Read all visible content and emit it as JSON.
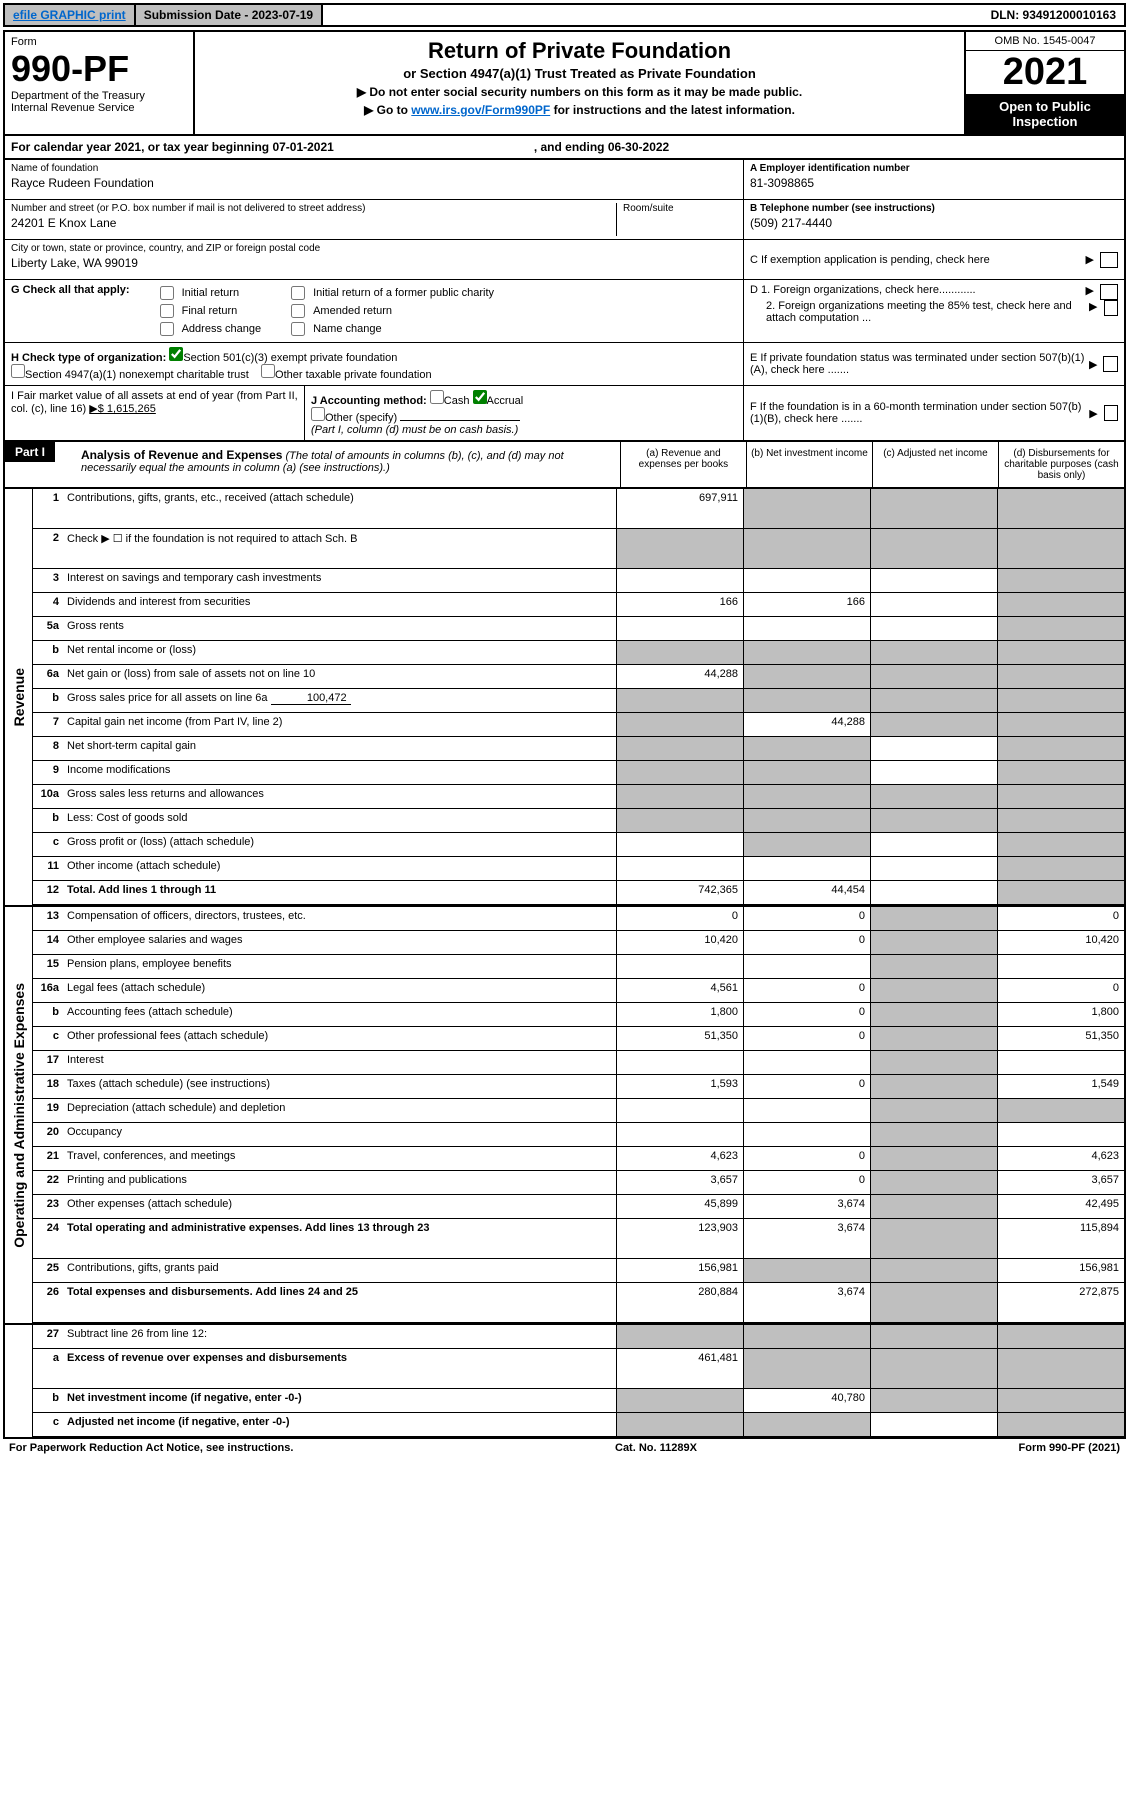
{
  "topbar": {
    "efile": "efile GRAPHIC print",
    "submission": "Submission Date - 2023-07-19",
    "dln": "DLN: 93491200010163"
  },
  "header": {
    "form_label": "Form",
    "form_num": "990-PF",
    "dept": "Department of the Treasury",
    "irs": "Internal Revenue Service",
    "title": "Return of Private Foundation",
    "subtitle": "or Section 4947(a)(1) Trust Treated as Private Foundation",
    "inst1": "▶ Do not enter social security numbers on this form as it may be made public.",
    "inst2_pre": "▶ Go to ",
    "inst2_link": "www.irs.gov/Form990PF",
    "inst2_post": " for instructions and the latest information.",
    "omb": "OMB No. 1545-0047",
    "year": "2021",
    "open": "Open to Public Inspection"
  },
  "calyear": {
    "text": "For calendar year 2021, or tax year beginning 07-01-2021",
    "ending": ", and ending 06-30-2022"
  },
  "foundation": {
    "name_label": "Name of foundation",
    "name": "Rayce Rudeen Foundation",
    "addr_label": "Number and street (or P.O. box number if mail is not delivered to street address)",
    "addr": "24201 E Knox Lane",
    "room_label": "Room/suite",
    "city_label": "City or town, state or province, country, and ZIP or foreign postal code",
    "city": "Liberty Lake, WA  99019",
    "ein_label": "A Employer identification number",
    "ein": "81-3098865",
    "phone_label": "B Telephone number (see instructions)",
    "phone": "(509) 217-4440",
    "c_label": "C If exemption application is pending, check here",
    "d1": "D 1. Foreign organizations, check here............",
    "d2": "2. Foreign organizations meeting the 85% test, check here and attach computation ...",
    "e_label": "E  If private foundation status was terminated under section 507(b)(1)(A), check here .......",
    "f_label": "F  If the foundation is in a 60-month termination under section 507(b)(1)(B), check here ......."
  },
  "g": {
    "label": "G Check all that apply:",
    "opts": [
      "Initial return",
      "Final return",
      "Address change",
      "Initial return of a former public charity",
      "Amended return",
      "Name change"
    ]
  },
  "h": {
    "label": "H Check type of organization:",
    "opt1": "Section 501(c)(3) exempt private foundation",
    "opt2": "Section 4947(a)(1) nonexempt charitable trust",
    "opt3": "Other taxable private foundation"
  },
  "i": {
    "label": "I Fair market value of all assets at end of year (from Part II, col. (c), line 16)",
    "value": "▶$  1,615,265"
  },
  "j": {
    "label": "J Accounting method:",
    "cash": "Cash",
    "accrual": "Accrual",
    "other": "Other (specify)",
    "note": "(Part I, column (d) must be on cash basis.)"
  },
  "part1": {
    "label": "Part I",
    "title": "Analysis of Revenue and Expenses",
    "note": "(The total of amounts in columns (b), (c), and (d) may not necessarily equal the amounts in column (a) (see instructions).)",
    "col_a": "(a)   Revenue and expenses per books",
    "col_b": "(b)   Net investment income",
    "col_c": "(c)   Adjusted net income",
    "col_d": "(d)   Disbursements for charitable purposes (cash basis only)"
  },
  "revenue_label": "Revenue",
  "expenses_label": "Operating and Administrative Expenses",
  "rows": {
    "r1": {
      "n": "1",
      "d": "Contributions, gifts, grants, etc., received (attach schedule)",
      "a": "697,911"
    },
    "r2": {
      "n": "2",
      "d": "Check ▶ ☐ if the foundation is not required to attach Sch. B"
    },
    "r3": {
      "n": "3",
      "d": "Interest on savings and temporary cash investments"
    },
    "r4": {
      "n": "4",
      "d": "Dividends and interest from securities",
      "a": "166",
      "b": "166"
    },
    "r5a": {
      "n": "5a",
      "d": "Gross rents"
    },
    "r5b": {
      "n": "b",
      "d": "Net rental income or (loss)"
    },
    "r6a": {
      "n": "6a",
      "d": "Net gain or (loss) from sale of assets not on line 10",
      "a": "44,288"
    },
    "r6b": {
      "n": "b",
      "d": "Gross sales price for all assets on line 6a",
      "v": "100,472"
    },
    "r7": {
      "n": "7",
      "d": "Capital gain net income (from Part IV, line 2)",
      "b": "44,288"
    },
    "r8": {
      "n": "8",
      "d": "Net short-term capital gain"
    },
    "r9": {
      "n": "9",
      "d": "Income modifications"
    },
    "r10a": {
      "n": "10a",
      "d": "Gross sales less returns and allowances"
    },
    "r10b": {
      "n": "b",
      "d": "Less: Cost of goods sold"
    },
    "r10c": {
      "n": "c",
      "d": "Gross profit or (loss) (attach schedule)"
    },
    "r11": {
      "n": "11",
      "d": "Other income (attach schedule)"
    },
    "r12": {
      "n": "12",
      "d": "Total. Add lines 1 through 11",
      "a": "742,365",
      "b": "44,454"
    },
    "r13": {
      "n": "13",
      "d": "Compensation of officers, directors, trustees, etc.",
      "a": "0",
      "b": "0",
      "dd": "0"
    },
    "r14": {
      "n": "14",
      "d": "Other employee salaries and wages",
      "a": "10,420",
      "b": "0",
      "dd": "10,420"
    },
    "r15": {
      "n": "15",
      "d": "Pension plans, employee benefits"
    },
    "r16a": {
      "n": "16a",
      "d": "Legal fees (attach schedule)",
      "a": "4,561",
      "b": "0",
      "dd": "0"
    },
    "r16b": {
      "n": "b",
      "d": "Accounting fees (attach schedule)",
      "a": "1,800",
      "b": "0",
      "dd": "1,800"
    },
    "r16c": {
      "n": "c",
      "d": "Other professional fees (attach schedule)",
      "a": "51,350",
      "b": "0",
      "dd": "51,350"
    },
    "r17": {
      "n": "17",
      "d": "Interest"
    },
    "r18": {
      "n": "18",
      "d": "Taxes (attach schedule) (see instructions)",
      "a": "1,593",
      "b": "0",
      "dd": "1,549"
    },
    "r19": {
      "n": "19",
      "d": "Depreciation (attach schedule) and depletion"
    },
    "r20": {
      "n": "20",
      "d": "Occupancy"
    },
    "r21": {
      "n": "21",
      "d": "Travel, conferences, and meetings",
      "a": "4,623",
      "b": "0",
      "dd": "4,623"
    },
    "r22": {
      "n": "22",
      "d": "Printing and publications",
      "a": "3,657",
      "b": "0",
      "dd": "3,657"
    },
    "r23": {
      "n": "23",
      "d": "Other expenses (attach schedule)",
      "a": "45,899",
      "b": "3,674",
      "dd": "42,495"
    },
    "r24": {
      "n": "24",
      "d": "Total operating and administrative expenses. Add lines 13 through 23",
      "a": "123,903",
      "b": "3,674",
      "dd": "115,894"
    },
    "r25": {
      "n": "25",
      "d": "Contributions, gifts, grants paid",
      "a": "156,981",
      "dd": "156,981"
    },
    "r26": {
      "n": "26",
      "d": "Total expenses and disbursements. Add lines 24 and 25",
      "a": "280,884",
      "b": "3,674",
      "dd": "272,875"
    },
    "r27": {
      "n": "27",
      "d": "Subtract line 26 from line 12:"
    },
    "r27a": {
      "n": "a",
      "d": "Excess of revenue over expenses and disbursements",
      "a": "461,481"
    },
    "r27b": {
      "n": "b",
      "d": "Net investment income (if negative, enter -0-)",
      "b": "40,780"
    },
    "r27c": {
      "n": "c",
      "d": "Adjusted net income (if negative, enter -0-)"
    }
  },
  "footer": {
    "left": "For Paperwork Reduction Act Notice, see instructions.",
    "mid": "Cat. No. 11289X",
    "right": "Form 990-PF (2021)"
  }
}
